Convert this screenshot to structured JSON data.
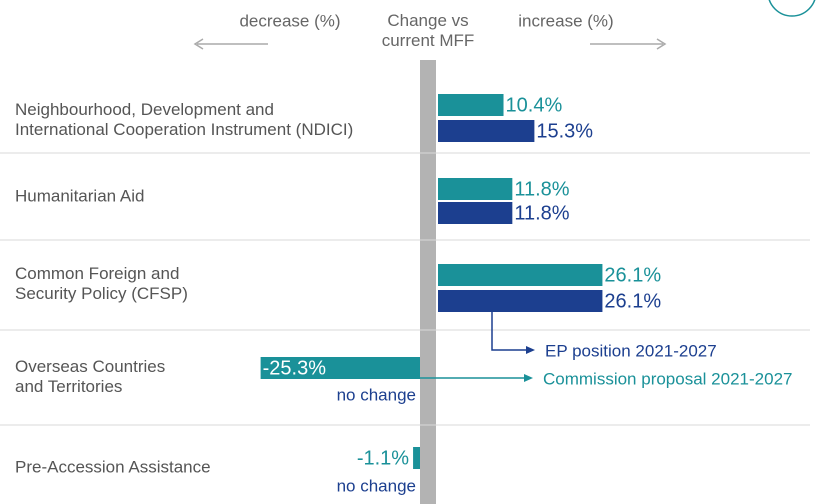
{
  "chart_data": {
    "type": "bar",
    "header": {
      "left": "decrease (%)",
      "center": "Change vs\ncurrent MFF",
      "right": "increase (%)"
    },
    "categories": [
      "Neighbourhood, Development and\nInternational Cooperation Instrument (NDICI)",
      "Humanitarian Aid",
      "Common Foreign and\nSecurity Policy (CFSP)",
      "Overseas Countries\nand Territories",
      "Pre-Accession Assistance"
    ],
    "series": [
      {
        "name": "Commission proposal 2021-2027",
        "color": "#1a9199",
        "values": [
          10.4,
          11.8,
          26.1,
          -25.3,
          -1.1
        ],
        "value_labels": [
          "10.4%",
          "11.8%",
          "26.1%",
          "-25.3%",
          "-1.1%"
        ]
      },
      {
        "name": "EP position 2021-2027",
        "color": "#1c3f8f",
        "values": [
          15.3,
          11.8,
          26.1,
          0,
          0
        ],
        "value_labels": [
          "15.3%",
          "11.8%",
          "26.1%",
          "no change",
          "no change"
        ]
      }
    ]
  }
}
